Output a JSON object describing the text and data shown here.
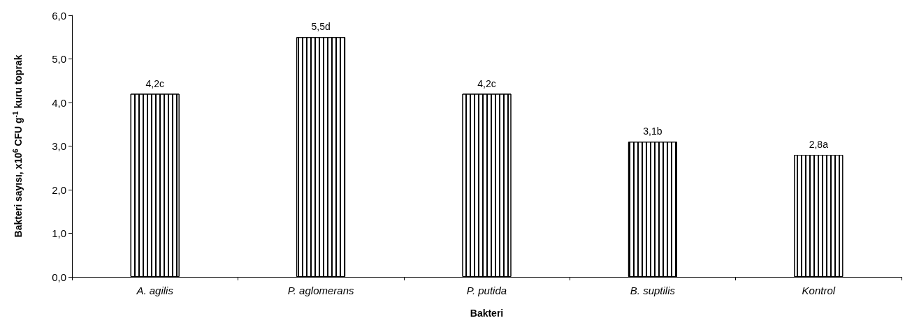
{
  "chart_data": {
    "type": "bar",
    "xlabel": "Bakteri",
    "ylabel": "Bakteri sayısı, x10$^{6}$ CFU g$^{-1}$ kuru toprak",
    "categories": [
      "A. agilis",
      "P. aglomerans",
      "P. putida",
      "B. suptilis",
      "Kontrol"
    ],
    "values": [
      4.2,
      5.5,
      4.2,
      3.1,
      2.8
    ],
    "value_labels": [
      "4,2c",
      "5,5d",
      "4,2c",
      "3,1b",
      "2,8a"
    ],
    "color": "#ffffff",
    "ylim": [
      0,
      6
    ],
    "yticks": [
      {
        "value": 0,
        "label": "0,0"
      },
      {
        "value": 1,
        "label": "1,0"
      },
      {
        "value": 2,
        "label": "2,0"
      },
      {
        "value": 3,
        "label": "3,0"
      },
      {
        "value": 4,
        "label": "4,0"
      },
      {
        "value": 5,
        "label": "5,0"
      },
      {
        "value": 6,
        "label": "6,0"
      }
    ],
    "grid": false
  }
}
